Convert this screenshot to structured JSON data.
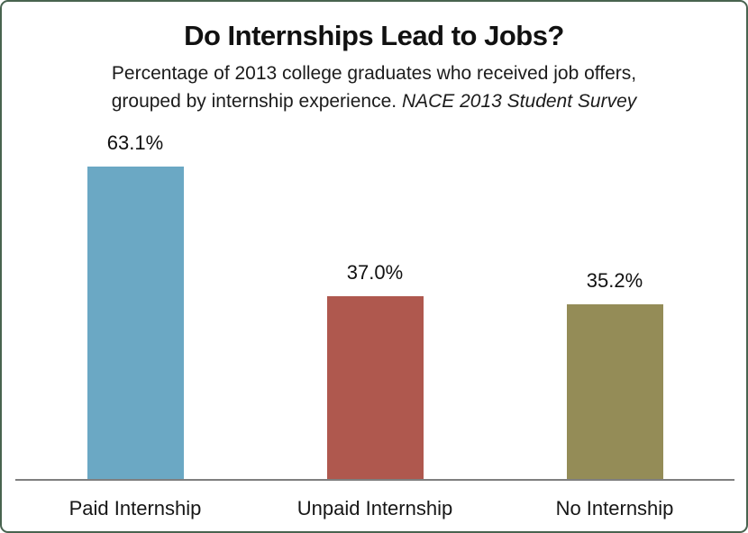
{
  "header": {
    "title": "Do Internships Lead to Jobs?",
    "subtitle_line1": "Percentage of 2013 college graduates who received job offers,",
    "subtitle_line2_normal": "grouped by internship experience. ",
    "subtitle_line2_italic": "NACE 2013 Student Survey"
  },
  "chart_data": {
    "type": "bar",
    "title": "Do Internships Lead to Jobs?",
    "subtitle": "Percentage of 2013 college graduates who received job offers, grouped by internship experience. NACE 2013 Student Survey",
    "source_note": "NACE 2013 Student Survey",
    "categories": [
      "Paid Internship",
      "Unpaid Internship",
      "No Internship"
    ],
    "values": [
      63.1,
      37.0,
      35.2
    ],
    "value_labels": [
      "63.1%",
      "37.0%",
      "35.2%"
    ],
    "unit": "%",
    "bar_colors": [
      "#6BA8C4",
      "#AF584E",
      "#948C57"
    ],
    "ylim": [
      0,
      70
    ],
    "grid": false,
    "legend": false,
    "y_axis_visible": false,
    "x_axis_line_color": "#7f7f7f",
    "frame_border_color": "#48634f",
    "background_color": "#ffffff",
    "value_label_position": "above-bar"
  }
}
